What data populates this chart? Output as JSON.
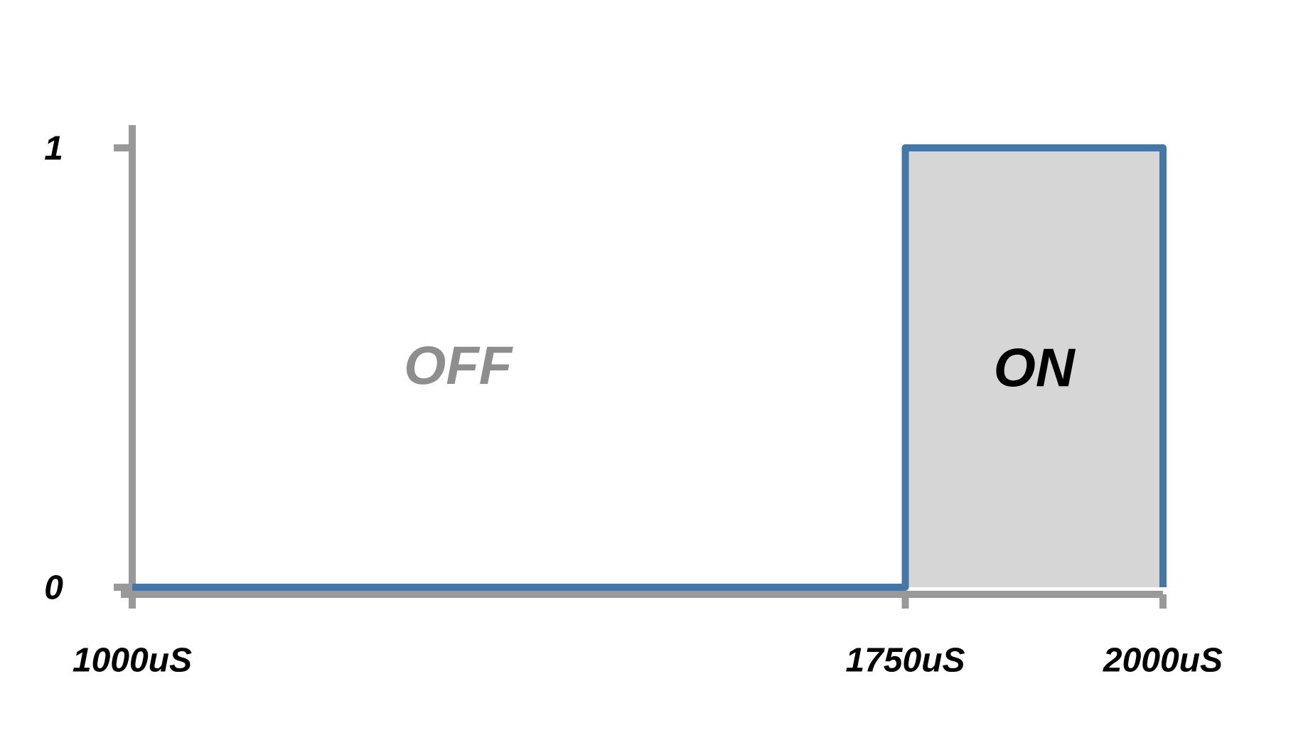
{
  "chart_data": {
    "type": "line",
    "x": [
      1000,
      1750,
      1750,
      2000,
      2000
    ],
    "values": [
      0,
      0,
      1,
      1,
      0
    ],
    "color": "#4277a8",
    "xlim": [
      1000,
      2000
    ],
    "ylim": [
      0,
      1
    ],
    "xticks": [
      {
        "value": 1000,
        "label": "1000uS"
      },
      {
        "value": 1750,
        "label": "1750uS"
      },
      {
        "value": 2000,
        "label": "2000uS"
      }
    ],
    "yticks": [
      0,
      1
    ],
    "bands": [
      {
        "axis": "x",
        "from": 1750,
        "to": 2000,
        "label": "ON",
        "color": "#d6d6d6"
      }
    ],
    "annotations": [
      "OFF"
    ]
  }
}
